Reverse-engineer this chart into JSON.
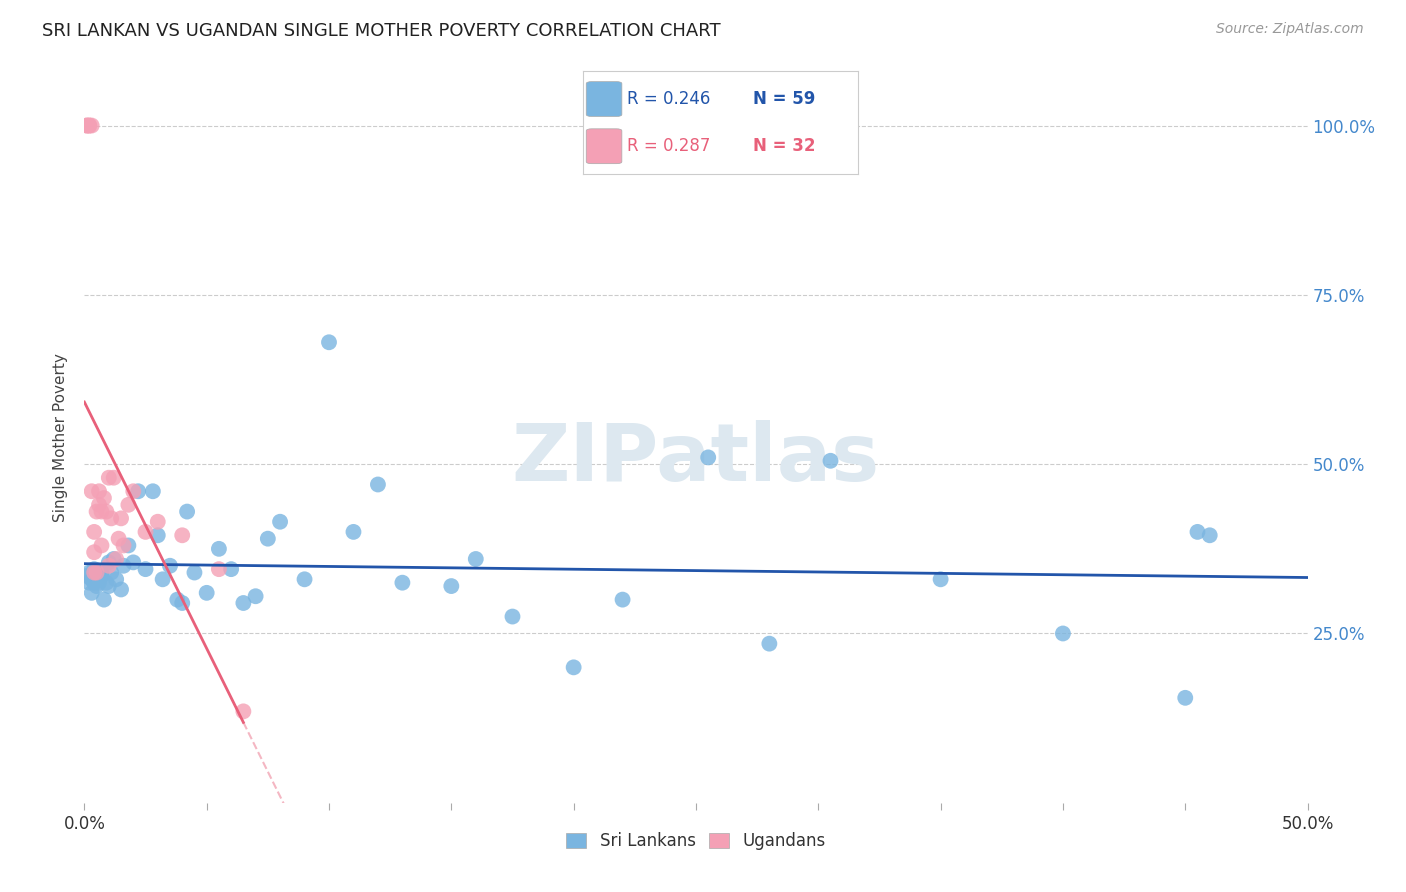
{
  "title": "SRI LANKAN VS UGANDAN SINGLE MOTHER POVERTY CORRELATION CHART",
  "source": "Source: ZipAtlas.com",
  "ylabel": "Single Mother Poverty",
  "y_ticks": [
    0.25,
    0.5,
    0.75,
    1.0
  ],
  "y_tick_labels": [
    "25.0%",
    "50.0%",
    "75.0%",
    "100.0%"
  ],
  "xlim": [
    0.0,
    0.5
  ],
  "ylim": [
    0.0,
    1.08
  ],
  "sri_lanka_color": "#7ab5e0",
  "uganda_color": "#f4a0b5",
  "sri_lanka_line_color": "#2255aa",
  "uganda_line_color": "#e8607a",
  "background_color": "#ffffff",
  "grid_color": "#cccccc",
  "watermark": "ZIPatlas",
  "sri_lanka_label": "Sri Lankans",
  "uganda_label": "Ugandans",
  "sri_x": [
    0.001,
    0.002,
    0.002,
    0.003,
    0.003,
    0.004,
    0.004,
    0.005,
    0.005,
    0.006,
    0.006,
    0.007,
    0.007,
    0.008,
    0.009,
    0.01,
    0.01,
    0.011,
    0.012,
    0.013,
    0.015,
    0.016,
    0.018,
    0.02,
    0.022,
    0.025,
    0.028,
    0.03,
    0.032,
    0.035,
    0.038,
    0.04,
    0.042,
    0.045,
    0.05,
    0.055,
    0.06,
    0.065,
    0.07,
    0.075,
    0.08,
    0.09,
    0.1,
    0.11,
    0.12,
    0.13,
    0.15,
    0.16,
    0.175,
    0.2,
    0.22,
    0.255,
    0.28,
    0.305,
    0.35,
    0.4,
    0.45,
    0.455,
    0.46
  ],
  "sri_y": [
    0.335,
    0.325,
    0.34,
    0.31,
    0.33,
    0.325,
    0.345,
    0.32,
    0.34,
    0.33,
    0.325,
    0.34,
    0.335,
    0.3,
    0.325,
    0.32,
    0.355,
    0.34,
    0.36,
    0.33,
    0.315,
    0.35,
    0.38,
    0.355,
    0.46,
    0.345,
    0.46,
    0.395,
    0.33,
    0.35,
    0.3,
    0.295,
    0.43,
    0.34,
    0.31,
    0.375,
    0.345,
    0.295,
    0.305,
    0.39,
    0.415,
    0.33,
    0.68,
    0.4,
    0.47,
    0.325,
    0.32,
    0.36,
    0.275,
    0.2,
    0.3,
    0.51,
    0.235,
    0.505,
    0.33,
    0.25,
    0.155,
    0.4,
    0.395
  ],
  "uga_x": [
    0.001,
    0.001,
    0.002,
    0.002,
    0.003,
    0.003,
    0.004,
    0.004,
    0.004,
    0.005,
    0.005,
    0.006,
    0.006,
    0.007,
    0.007,
    0.008,
    0.009,
    0.01,
    0.01,
    0.011,
    0.012,
    0.013,
    0.014,
    0.015,
    0.016,
    0.018,
    0.02,
    0.025,
    0.03,
    0.04,
    0.055,
    0.065
  ],
  "uga_y": [
    1.0,
    1.0,
    1.0,
    1.0,
    1.0,
    0.46,
    0.34,
    0.37,
    0.4,
    0.34,
    0.43,
    0.44,
    0.46,
    0.43,
    0.38,
    0.45,
    0.43,
    0.48,
    0.35,
    0.42,
    0.48,
    0.36,
    0.39,
    0.42,
    0.38,
    0.44,
    0.46,
    0.4,
    0.415,
    0.395,
    0.345,
    0.135
  ]
}
